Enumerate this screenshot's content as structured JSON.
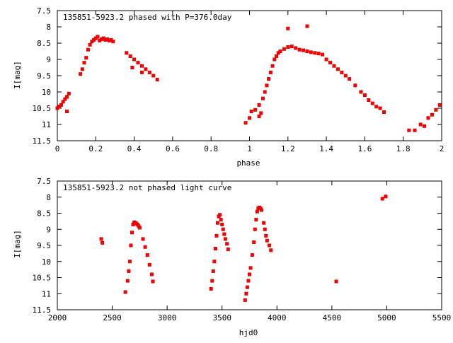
{
  "chart_data": [
    {
      "type": "scatter",
      "title": "135851-5923.2 phased with P=376.0day",
      "xlabel": "phase",
      "ylabel": "I[mag]",
      "xlim": [
        0,
        2
      ],
      "ylim": [
        11.5,
        7.5
      ],
      "y_inverted": true,
      "xticks": [
        "0",
        "0.2",
        "0.4",
        "0.6",
        "0.8",
        "1",
        "1.2",
        "1.4",
        "1.6",
        "1.8",
        "2"
      ],
      "yticks": [
        "7.5",
        "8",
        "8.5",
        "9",
        "9.5",
        "10",
        "10.5",
        "11",
        "11.5"
      ],
      "grid": false,
      "marker_color": "#ff0000",
      "points": [
        [
          0.0,
          10.5
        ],
        [
          0.01,
          10.45
        ],
        [
          0.02,
          10.4
        ],
        [
          0.03,
          10.3
        ],
        [
          0.04,
          10.22
        ],
        [
          0.05,
          10.15
        ],
        [
          0.06,
          10.05
        ],
        [
          0.05,
          10.6
        ],
        [
          0.12,
          9.45
        ],
        [
          0.13,
          9.3
        ],
        [
          0.14,
          9.1
        ],
        [
          0.15,
          8.95
        ],
        [
          0.16,
          8.7
        ],
        [
          0.17,
          8.55
        ],
        [
          0.18,
          8.45
        ],
        [
          0.19,
          8.4
        ],
        [
          0.2,
          8.35
        ],
        [
          0.21,
          8.3
        ],
        [
          0.22,
          8.42
        ],
        [
          0.23,
          8.38
        ],
        [
          0.24,
          8.35
        ],
        [
          0.25,
          8.4
        ],
        [
          0.26,
          8.38
        ],
        [
          0.27,
          8.42
        ],
        [
          0.28,
          8.4
        ],
        [
          0.29,
          8.45
        ],
        [
          0.36,
          8.8
        ],
        [
          0.38,
          8.9
        ],
        [
          0.4,
          9.0
        ],
        [
          0.42,
          9.1
        ],
        [
          0.44,
          9.2
        ],
        [
          0.46,
          9.3
        ],
        [
          0.48,
          9.4
        ],
        [
          0.5,
          9.5
        ],
        [
          0.52,
          9.62
        ],
        [
          0.39,
          9.25
        ],
        [
          0.44,
          9.4
        ],
        [
          0.98,
          10.95
        ],
        [
          1.0,
          10.8
        ],
        [
          1.01,
          10.6
        ],
        [
          1.03,
          10.55
        ],
        [
          1.05,
          10.4
        ],
        [
          1.07,
          10.2
        ],
        [
          1.08,
          10.0
        ],
        [
          1.09,
          9.8
        ],
        [
          1.1,
          9.6
        ],
        [
          1.11,
          9.4
        ],
        [
          1.12,
          9.2
        ],
        [
          1.13,
          9.0
        ],
        [
          1.14,
          8.9
        ],
        [
          1.15,
          8.8
        ],
        [
          1.16,
          8.75
        ],
        [
          1.18,
          8.68
        ],
        [
          1.2,
          8.62
        ],
        [
          1.22,
          8.6
        ],
        [
          1.24,
          8.65
        ],
        [
          1.26,
          8.7
        ],
        [
          1.28,
          8.72
        ],
        [
          1.3,
          8.75
        ],
        [
          1.32,
          8.78
        ],
        [
          1.34,
          8.8
        ],
        [
          1.36,
          8.82
        ],
        [
          1.38,
          8.85
        ],
        [
          1.4,
          9.0
        ],
        [
          1.42,
          9.1
        ],
        [
          1.44,
          9.2
        ],
        [
          1.46,
          9.3
        ],
        [
          1.48,
          9.4
        ],
        [
          1.5,
          9.5
        ],
        [
          1.52,
          9.6
        ],
        [
          1.55,
          9.8
        ],
        [
          1.58,
          10.0
        ],
        [
          1.6,
          10.1
        ],
        [
          1.62,
          10.25
        ],
        [
          1.64,
          10.35
        ],
        [
          1.66,
          10.45
        ],
        [
          1.68,
          10.5
        ],
        [
          1.7,
          10.62
        ],
        [
          1.05,
          10.75
        ],
        [
          1.06,
          10.65
        ],
        [
          1.2,
          8.05
        ],
        [
          1.3,
          7.98
        ],
        [
          1.83,
          11.18
        ],
        [
          1.86,
          11.18
        ],
        [
          1.89,
          11.0
        ],
        [
          1.91,
          11.05
        ],
        [
          1.93,
          10.8
        ],
        [
          1.95,
          10.7
        ],
        [
          1.97,
          10.55
        ],
        [
          1.99,
          10.4
        ]
      ]
    },
    {
      "type": "scatter",
      "title": "135851-5923.2 not phased light curve",
      "xlabel": "hjd0",
      "ylabel": "I[mag]",
      "xlim": [
        2000,
        5500
      ],
      "ylim": [
        11.5,
        7.5
      ],
      "y_inverted": true,
      "xticks": [
        "2000",
        "2500",
        "3000",
        "3500",
        "4000",
        "4500",
        "5000",
        "5500"
      ],
      "yticks": [
        "7.5",
        "8",
        "8.5",
        "9",
        "9.5",
        "10",
        "10.5",
        "11",
        "11.5"
      ],
      "grid": false,
      "marker_color": "#ff0000",
      "points": [
        [
          2400,
          9.3
        ],
        [
          2410,
          9.42
        ],
        [
          2620,
          10.95
        ],
        [
          2640,
          10.6
        ],
        [
          2650,
          10.3
        ],
        [
          2660,
          10.0
        ],
        [
          2670,
          9.5
        ],
        [
          2680,
          9.1
        ],
        [
          2690,
          8.85
        ],
        [
          2700,
          8.78
        ],
        [
          2710,
          8.8
        ],
        [
          2720,
          8.82
        ],
        [
          2730,
          8.85
        ],
        [
          2740,
          8.9
        ],
        [
          2750,
          8.95
        ],
        [
          2780,
          9.3
        ],
        [
          2800,
          9.55
        ],
        [
          2820,
          9.8
        ],
        [
          2840,
          10.1
        ],
        [
          2860,
          10.4
        ],
        [
          2870,
          10.62
        ],
        [
          3400,
          10.85
        ],
        [
          3410,
          10.6
        ],
        [
          3420,
          10.3
        ],
        [
          3430,
          10.0
        ],
        [
          3440,
          9.6
        ],
        [
          3450,
          9.2
        ],
        [
          3460,
          8.8
        ],
        [
          3470,
          8.6
        ],
        [
          3480,
          8.55
        ],
        [
          3490,
          8.7
        ],
        [
          3500,
          8.85
        ],
        [
          3510,
          9.0
        ],
        [
          3520,
          9.15
        ],
        [
          3530,
          9.3
        ],
        [
          3545,
          9.45
        ],
        [
          3555,
          9.62
        ],
        [
          3710,
          11.2
        ],
        [
          3720,
          11.0
        ],
        [
          3730,
          10.8
        ],
        [
          3740,
          10.6
        ],
        [
          3750,
          10.4
        ],
        [
          3760,
          10.2
        ],
        [
          3775,
          9.8
        ],
        [
          3790,
          9.4
        ],
        [
          3800,
          9.0
        ],
        [
          3810,
          8.7
        ],
        [
          3820,
          8.45
        ],
        [
          3830,
          8.35
        ],
        [
          3840,
          8.32
        ],
        [
          3850,
          8.35
        ],
        [
          3860,
          8.4
        ],
        [
          3880,
          8.8
        ],
        [
          3890,
          9.0
        ],
        [
          3900,
          9.2
        ],
        [
          3910,
          9.35
        ],
        [
          3930,
          9.5
        ],
        [
          3945,
          9.65
        ],
        [
          4540,
          10.62
        ],
        [
          4960,
          8.05
        ],
        [
          4990,
          7.98
        ]
      ]
    }
  ]
}
